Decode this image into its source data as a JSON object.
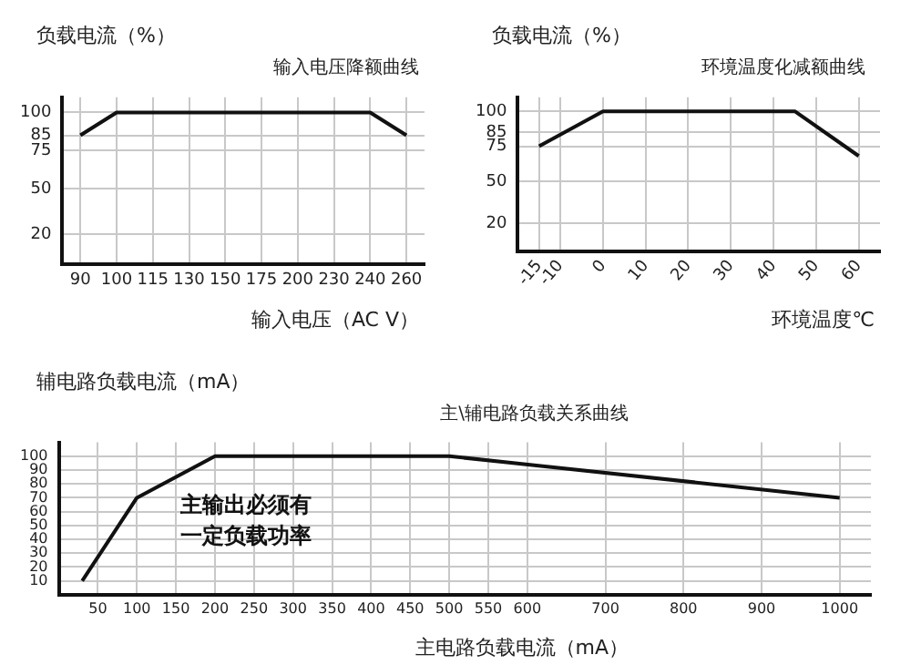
{
  "chart_data": [
    {
      "type": "line",
      "title": "输入电压降额曲线",
      "xlabel": "输入电压（AC V）",
      "ylabel": "负载电流（%）",
      "categories": [
        "90",
        "100",
        "115",
        "130",
        "150",
        "175",
        "200",
        "230",
        "240",
        "260"
      ],
      "series": [
        {
          "color": "#111111",
          "values": [
            85,
            100,
            100,
            100,
            100,
            100,
            100,
            100,
            100,
            85
          ]
        }
      ],
      "ylim": [
        0,
        110
      ],
      "yticks": [
        20,
        50,
        75,
        85,
        100
      ],
      "grid": true,
      "legend": false,
      "marker": "none",
      "line_style": "solid"
    },
    {
      "type": "line",
      "title": "环境温度化减额曲线",
      "xlabel": "环境温度℃",
      "ylabel": "负载电流（%）",
      "x": [
        -15,
        0,
        45,
        60
      ],
      "series": [
        {
          "color": "#111111",
          "values": [
            75,
            100,
            100,
            68
          ]
        }
      ],
      "xlim": [
        -20,
        65
      ],
      "xticks": [
        -15,
        -10,
        0,
        10,
        20,
        30,
        40,
        50,
        60
      ],
      "ylim": [
        0,
        110
      ],
      "yticks": [
        20,
        50,
        75,
        85,
        100
      ],
      "grid": true,
      "legend": false,
      "marker": "none",
      "line_style": "solid"
    },
    {
      "type": "line",
      "title": "主\\辅电路负载关系曲线",
      "xlabel": "主电路负载电流（mA）",
      "ylabel": "辅电路负载电流（mA）",
      "annotations": [
        "主输出必须有一定负载功率"
      ],
      "x": [
        30,
        100,
        200,
        500,
        1000
      ],
      "series": [
        {
          "color": "#111111",
          "values": [
            10,
            70,
            100,
            100,
            70
          ]
        }
      ],
      "xlim": [
        0,
        1040
      ],
      "xticks": [
        50,
        100,
        150,
        200,
        250,
        300,
        350,
        400,
        450,
        500,
        550,
        600,
        700,
        800,
        900,
        1000
      ],
      "ylim": [
        0,
        110
      ],
      "yticks": [
        10,
        20,
        30,
        40,
        50,
        60,
        70,
        80,
        90,
        100
      ],
      "grid": true,
      "legend": false,
      "marker": "none",
      "line_style": "solid"
    }
  ]
}
